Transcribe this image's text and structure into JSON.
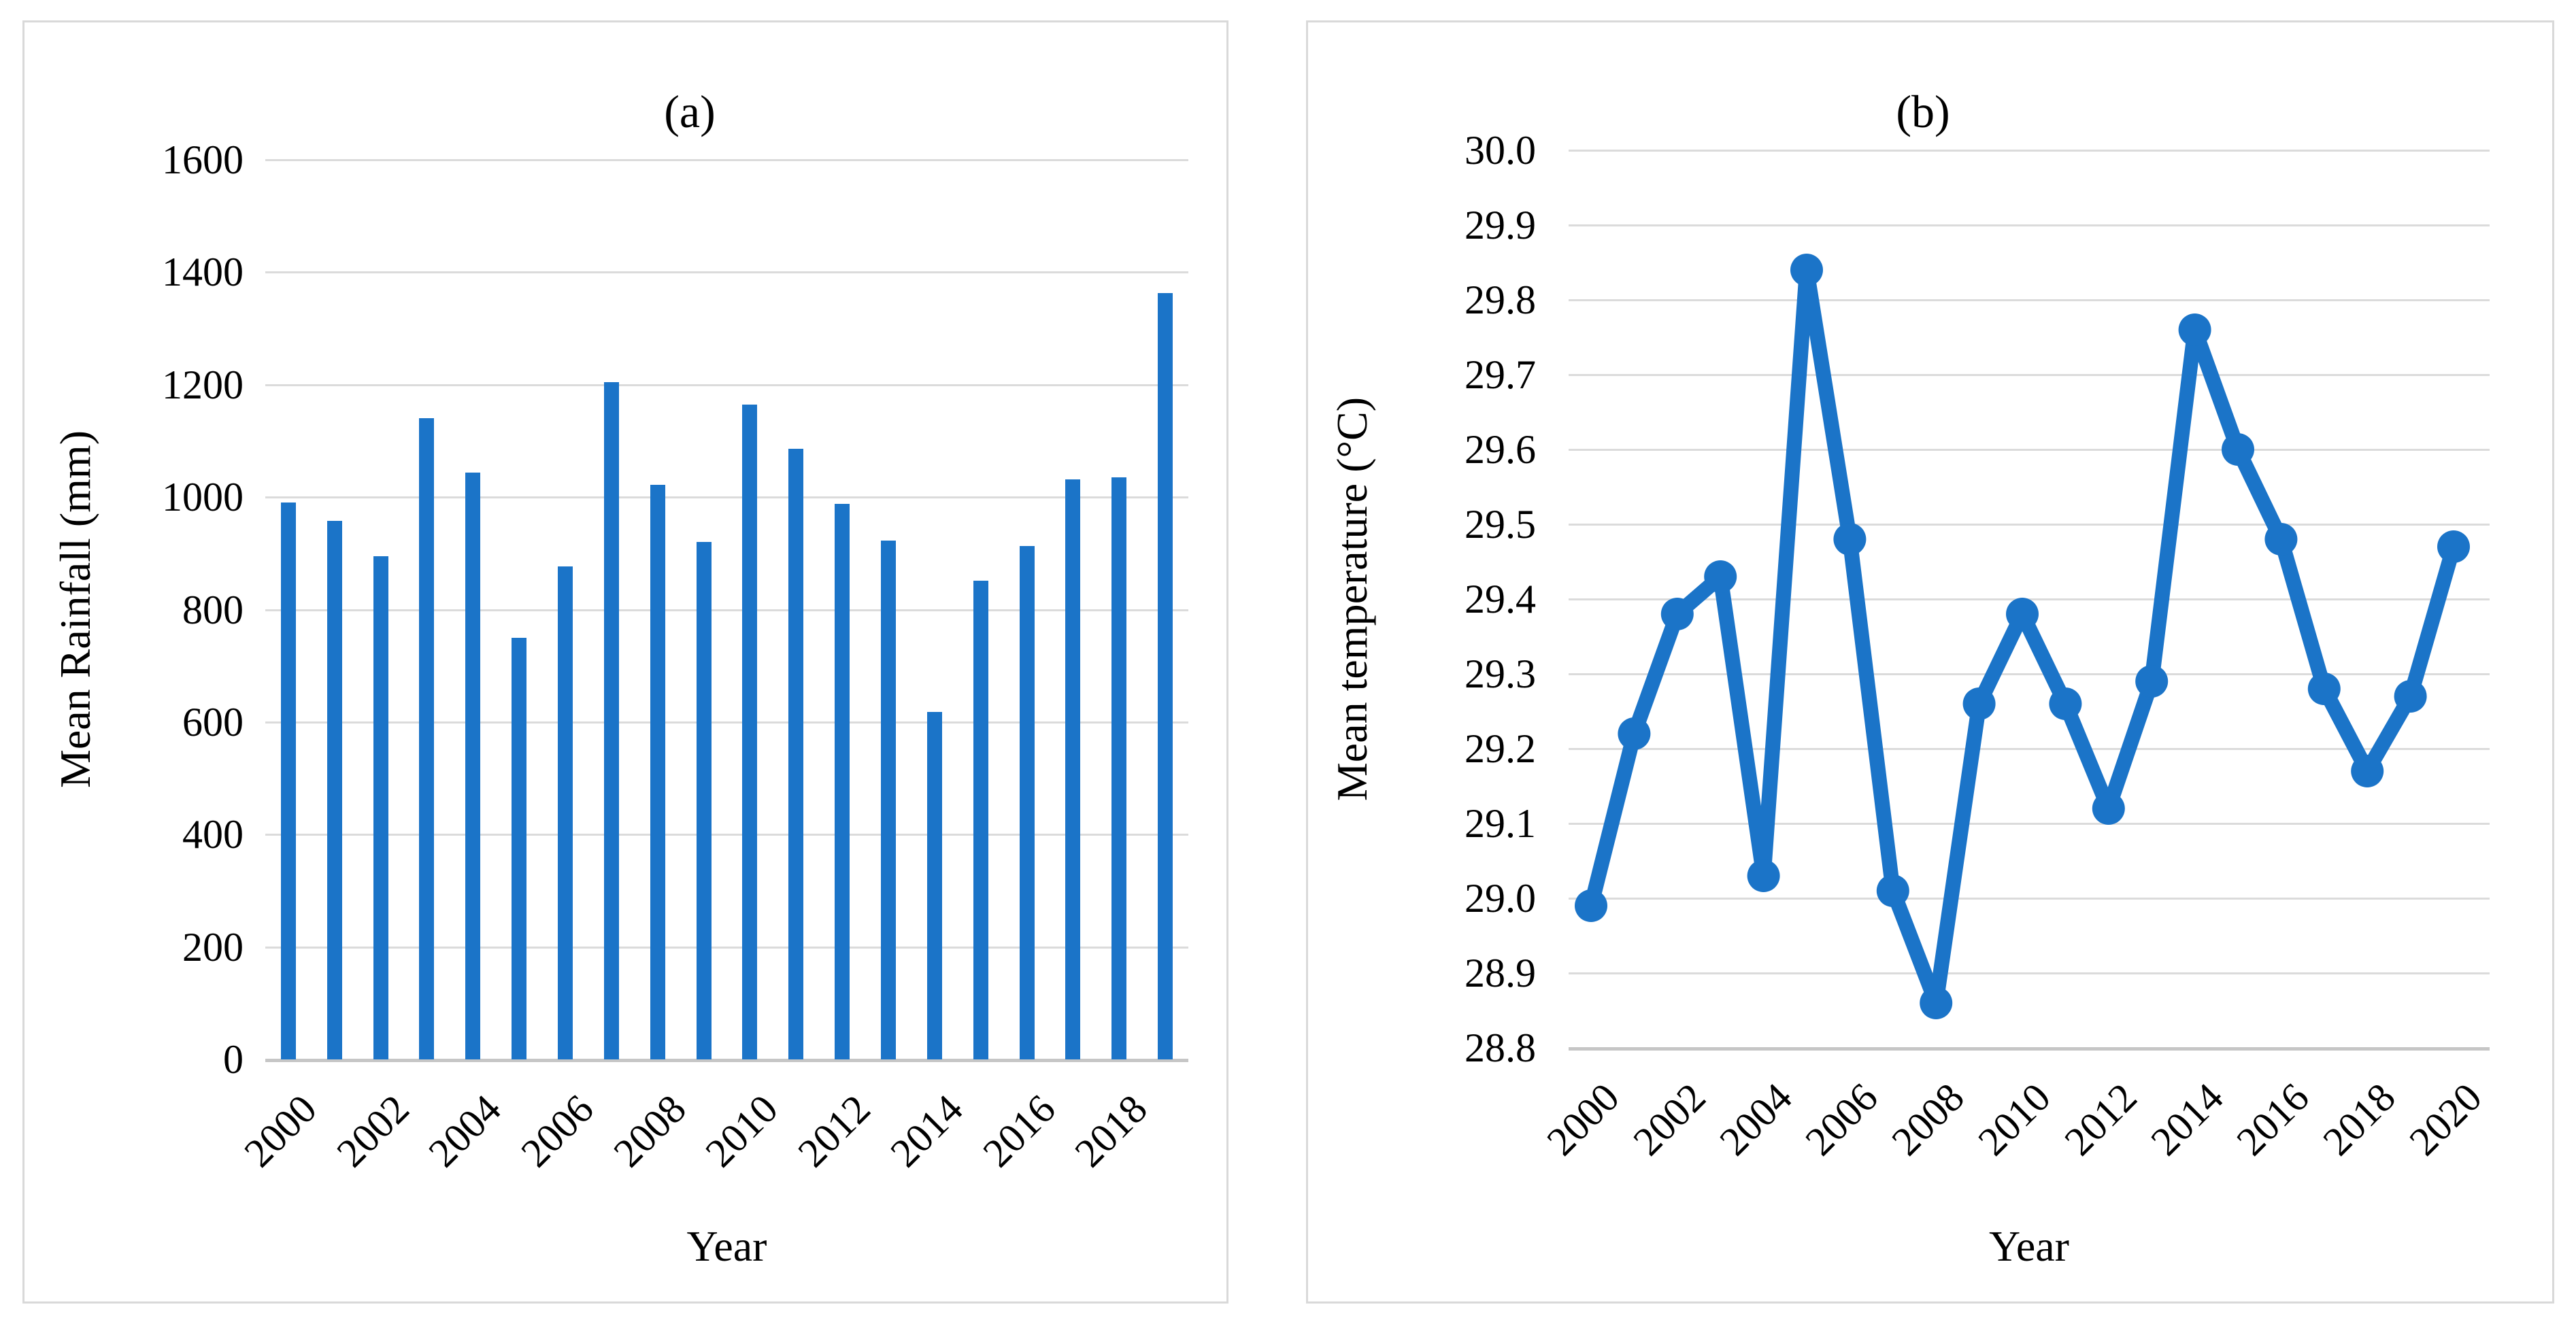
{
  "figure": {
    "background": "#FFFFFF",
    "panel_border_color": "#D9D9D9",
    "text_color": "#000000",
    "gridline_color": "#DBDBDB",
    "axis_line_color": "#C6C6C6",
    "series_color": "#1B74C8"
  },
  "chart_data": [
    {
      "panel": "a",
      "type": "bar",
      "title": "(a)",
      "xlabel": "Year",
      "ylabel": "Mean Rainfall (mm)",
      "ylim": [
        0,
        1600
      ],
      "ytick_step": 200,
      "ytick_labels": [
        "1600",
        "1400",
        "1200",
        "1000",
        "800",
        "600",
        "400",
        "200",
        "0"
      ],
      "grid": "horizontal",
      "legend": "none",
      "categories": [
        2000,
        2001,
        2002,
        2003,
        2004,
        2005,
        2006,
        2007,
        2008,
        2009,
        2010,
        2011,
        2012,
        2013,
        2014,
        2015,
        2016,
        2017,
        2018,
        2019
      ],
      "values": [
        990,
        958,
        895,
        1140,
        1044,
        750,
        877,
        1205,
        1022,
        920,
        1165,
        1086,
        988,
        923,
        618,
        852,
        913,
        1031,
        1035,
        1363
      ],
      "xtick_labels": [
        "2000",
        "2002",
        "2004",
        "2006",
        "2008",
        "2010",
        "2012",
        "2014",
        "2016",
        "2018"
      ],
      "bar_color": "#1B74C8"
    },
    {
      "panel": "b",
      "type": "line",
      "title": "(b)",
      "xlabel": "Year",
      "ylabel": "Mean temperature (°C)",
      "ylim": [
        28.8,
        30.0
      ],
      "ytick_step": 0.1,
      "ytick_labels": [
        "30.0",
        "29.9",
        "29.8",
        "29.7",
        "29.6",
        "29.5",
        "29.4",
        "29.3",
        "29.2",
        "29.1",
        "29.0",
        "28.9",
        "28.8"
      ],
      "grid": "horizontal",
      "legend": "none",
      "marker": "circle",
      "x": [
        2000,
        2001,
        2002,
        2003,
        2004,
        2005,
        2006,
        2007,
        2008,
        2009,
        2010,
        2011,
        2012,
        2013,
        2014,
        2015,
        2016,
        2017,
        2018,
        2019,
        2020
      ],
      "values": [
        28.99,
        29.22,
        29.38,
        29.43,
        29.03,
        29.84,
        29.48,
        29.01,
        28.86,
        29.26,
        29.38,
        29.26,
        29.12,
        29.29,
        29.76,
        29.6,
        29.48,
        29.28,
        29.17,
        29.27,
        29.47
      ],
      "xtick_labels": [
        "2000",
        "2002",
        "2004",
        "2006",
        "2008",
        "2010",
        "2012",
        "2014",
        "2016",
        "2018",
        "2020"
      ],
      "line_color": "#1B74C8"
    }
  ]
}
